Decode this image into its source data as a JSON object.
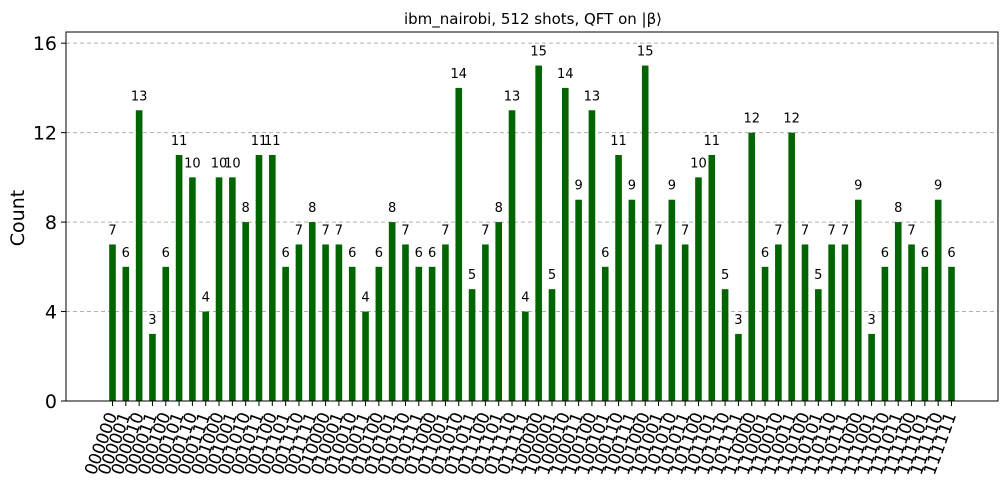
{
  "chart_data": {
    "type": "bar",
    "title": "ibm_nairobi, 512 shots, QFT on |β⟩",
    "xlabel": "",
    "ylabel": "Count",
    "ylim": [
      0,
      16.5
    ],
    "yticks": [
      "0",
      "4",
      "8",
      "12",
      "16"
    ],
    "grid": "horizontal dashed",
    "bar_color": "#006400",
    "categories": [
      "000000",
      "000001",
      "000010",
      "000011",
      "000100",
      "000101",
      "000110",
      "000111",
      "001000",
      "001001",
      "001010",
      "001011",
      "001100",
      "001101",
      "001110",
      "001111",
      "010000",
      "010001",
      "010010",
      "010011",
      "010100",
      "010101",
      "010110",
      "010111",
      "011000",
      "011001",
      "011010",
      "011011",
      "011100",
      "011101",
      "011110",
      "011111",
      "100000",
      "100001",
      "100010",
      "100011",
      "100100",
      "100101",
      "100110",
      "100111",
      "101000",
      "101001",
      "101010",
      "101011",
      "101100",
      "101101",
      "101110",
      "101111",
      "110000",
      "110001",
      "110010",
      "110011",
      "110100",
      "110101",
      "110110",
      "110111",
      "111000",
      "111001",
      "111010",
      "111011",
      "111100",
      "111101",
      "111110",
      "111111"
    ],
    "values": [
      7,
      6,
      13,
      3,
      6,
      11,
      10,
      4,
      10,
      10,
      8,
      11,
      11,
      6,
      7,
      8,
      7,
      7,
      6,
      4,
      6,
      8,
      7,
      6,
      6,
      7,
      14,
      5,
      7,
      8,
      13,
      4,
      15,
      5,
      14,
      9,
      13,
      6,
      11,
      9,
      15,
      7,
      9,
      7,
      10,
      11,
      5,
      3,
      12,
      6,
      7,
      12,
      7,
      5,
      7,
      7,
      9,
      3,
      6,
      8,
      7,
      6,
      9,
      6
    ]
  }
}
